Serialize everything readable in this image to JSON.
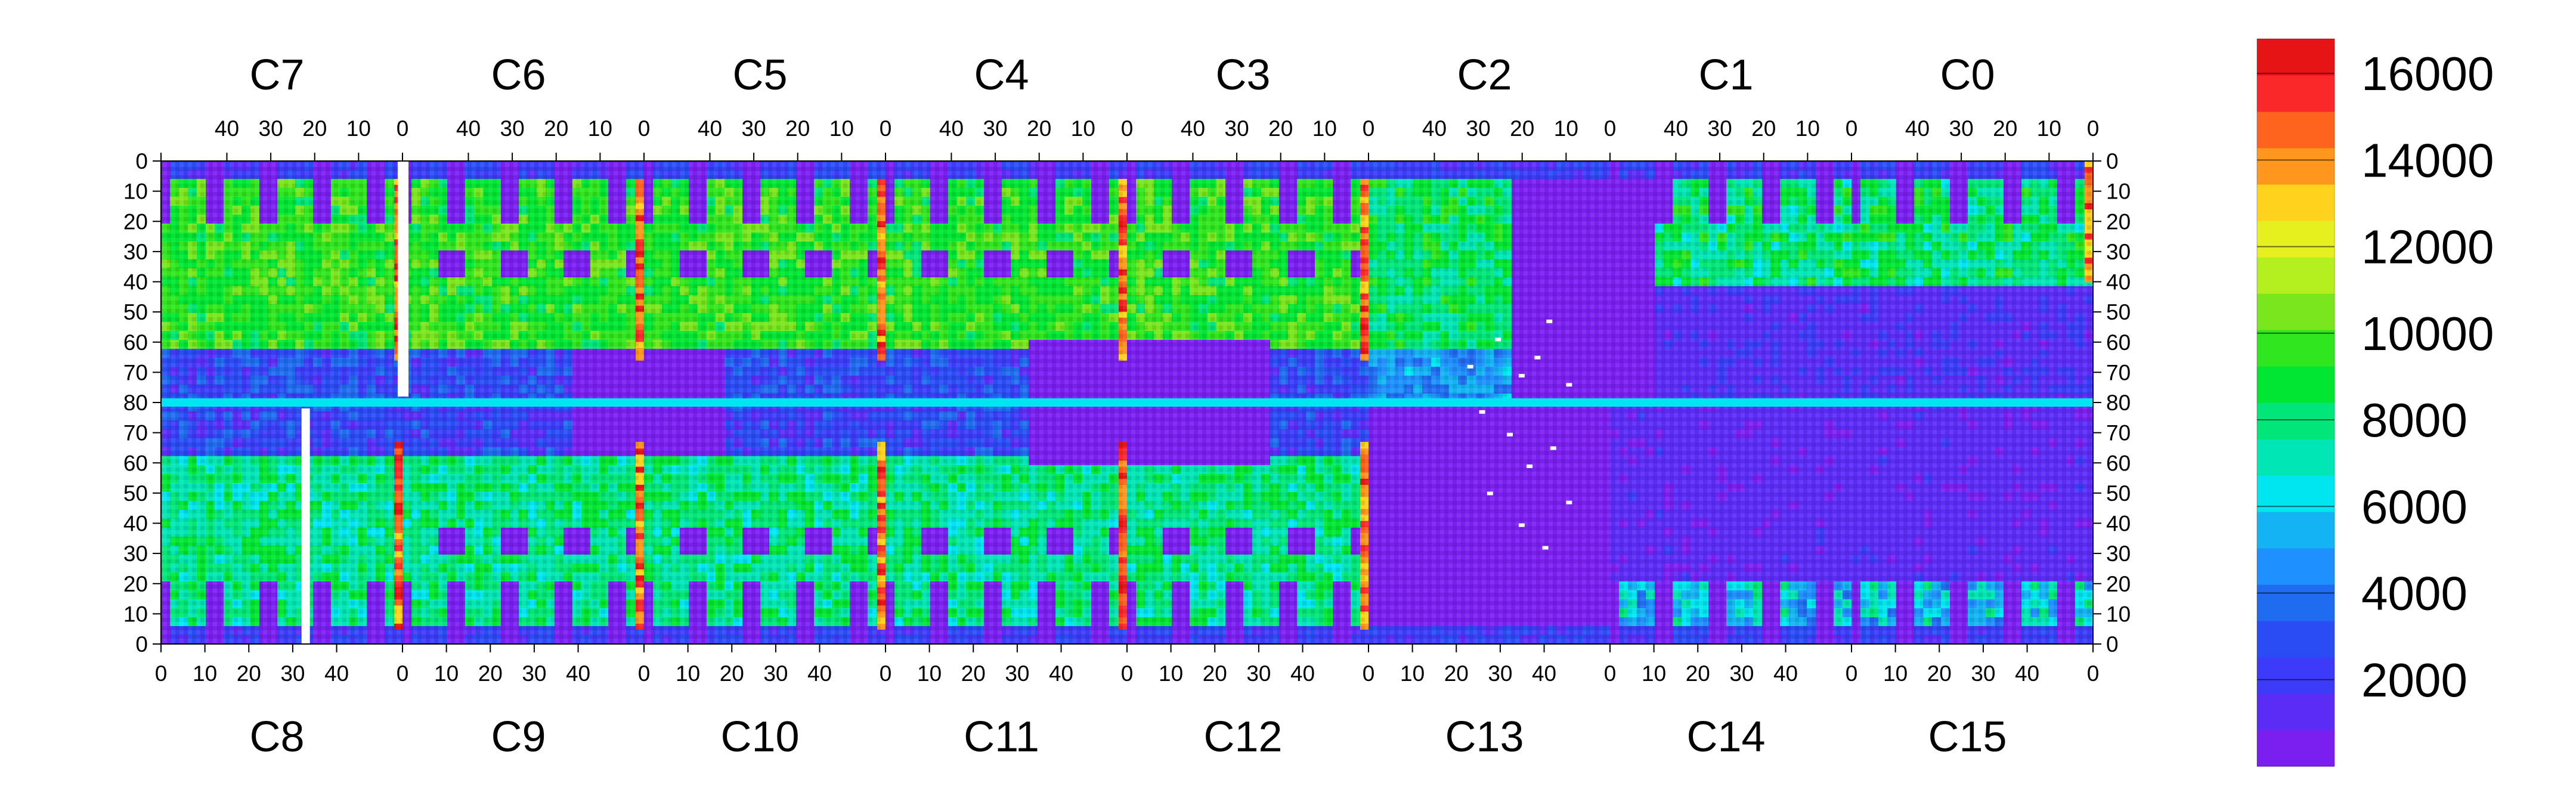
{
  "chart_data": {
    "type": "heatmap",
    "title": "",
    "top_chip_labels": [
      "C7",
      "C6",
      "C5",
      "C4",
      "C3",
      "C2",
      "C1",
      "C0"
    ],
    "bottom_chip_labels": [
      "C8",
      "C9",
      "C10",
      "C11",
      "C12",
      "C13",
      "C14",
      "C15"
    ],
    "top_x_ticks": [
      "40",
      "30",
      "20",
      "10",
      "0"
    ],
    "bottom_x_ticks": [
      "0",
      "10",
      "20",
      "30",
      "40"
    ],
    "bottom_axis_last_tick": "0",
    "y_ticks": [
      "0",
      "10",
      "20",
      "30",
      "40",
      "50",
      "60",
      "70",
      "80",
      "70",
      "60",
      "50",
      "40",
      "30",
      "20",
      "10",
      "0"
    ],
    "colorbar": {
      "range": [
        0,
        16800
      ],
      "tick_values": [
        2000,
        4000,
        6000,
        8000,
        10000,
        12000,
        14000,
        16000
      ],
      "tick_labels": [
        "2000",
        "4000",
        "6000",
        "8000",
        "10000",
        "12000",
        "14000",
        "16000"
      ],
      "colors": [
        "#7a1ff0",
        "#5c2cf7",
        "#3c3cf8",
        "#2a4cf5",
        "#1f6cf0",
        "#1e90ff",
        "#13b3f4",
        "#00e6f0",
        "#00e6b4",
        "#00e678",
        "#00e632",
        "#30e61e",
        "#7ae61e",
        "#b4ef1e",
        "#e6f01e",
        "#ffd21e",
        "#ff961e",
        "#ff641e",
        "#fa2828",
        "#e61414"
      ]
    },
    "regions": [
      {
        "chip": "C7",
        "dominant_level": "8000-10000",
        "hot_columns": "left edge near column 0, rows 10-60"
      },
      {
        "chip": "C6",
        "dominant_level": "8000-10000",
        "hot_columns": "right edge, rows 0-60"
      },
      {
        "chip": "C5",
        "dominant_level": "8000-10000",
        "hot_columns": "right edge, rows 0-80"
      },
      {
        "chip": "C4",
        "dominant_level": "6000-9000",
        "hot_columns": "right edge, rows 0-80"
      },
      {
        "chip": "C3",
        "dominant_level": "8000-10000",
        "hot_columns": "right edge, rows 0-80"
      },
      {
        "chip": "C2",
        "dominant_level": "6000-9000",
        "low_region": "columns 0-25 below 1000"
      },
      {
        "chip": "C1",
        "dominant_level": "below 2000 lower half, 6000-9000 upper"
      },
      {
        "chip": "C0",
        "dominant_level": "below 2000 lower half, 6000-10000 upper"
      },
      {
        "chip": "C8",
        "dominant_level": "4000-8000"
      },
      {
        "chip": "C9",
        "dominant_level": "6000-9000"
      },
      {
        "chip": "C10",
        "dominant_level": "6000-9000"
      },
      {
        "chip": "C11",
        "dominant_level": "4000-8000"
      },
      {
        "chip": "C12",
        "dominant_level": "4000-8000"
      },
      {
        "chip": "C13",
        "dominant_level": "below 1000"
      },
      {
        "chip": "C14",
        "dominant_level": "below 2000 with stripes 3000-6000"
      },
      {
        "chip": "C15",
        "dominant_level": "below 2000 with stripes 3000-8000"
      }
    ]
  }
}
